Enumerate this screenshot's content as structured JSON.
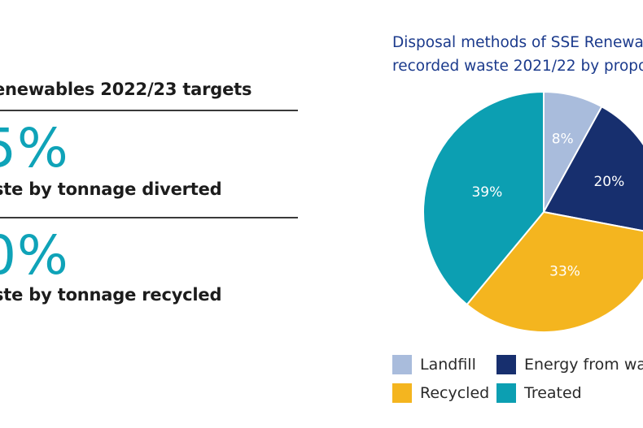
{
  "targets": {
    "title": "enewables 2022/23 targets",
    "items": [
      {
        "value": "5%",
        "desc": "ste by tonnage diverted"
      },
      {
        "value": "0%",
        "desc": "ste by tonnage recycled"
      }
    ]
  },
  "chart_title": {
    "line1": "Disposal methods of SSE Renewa",
    "line2": "recorded waste 2021/22 by propo"
  },
  "colors": {
    "landfill": "#a9bcdc",
    "energy": "#172f6e",
    "recycled": "#f4b51f",
    "treated": "#0c9fb2",
    "accent": "#0fa3b8"
  },
  "chart_data": {
    "type": "pie",
    "title": "Disposal methods of SSE Renewa recorded waste 2021/22 by propo",
    "slices": [
      {
        "name": "Landfill",
        "value": 8,
        "label": "8%",
        "color": "#a9bcdc"
      },
      {
        "name": "Energy from was",
        "value": 20,
        "label": "20%",
        "color": "#172f6e"
      },
      {
        "name": "Recycled",
        "value": 33,
        "label": "33%",
        "color": "#f4b51f"
      },
      {
        "name": "Treated",
        "value": 39,
        "label": "39%",
        "color": "#0c9fb2"
      }
    ],
    "legend_position": "bottom",
    "start_angle": "top, clockwise"
  }
}
